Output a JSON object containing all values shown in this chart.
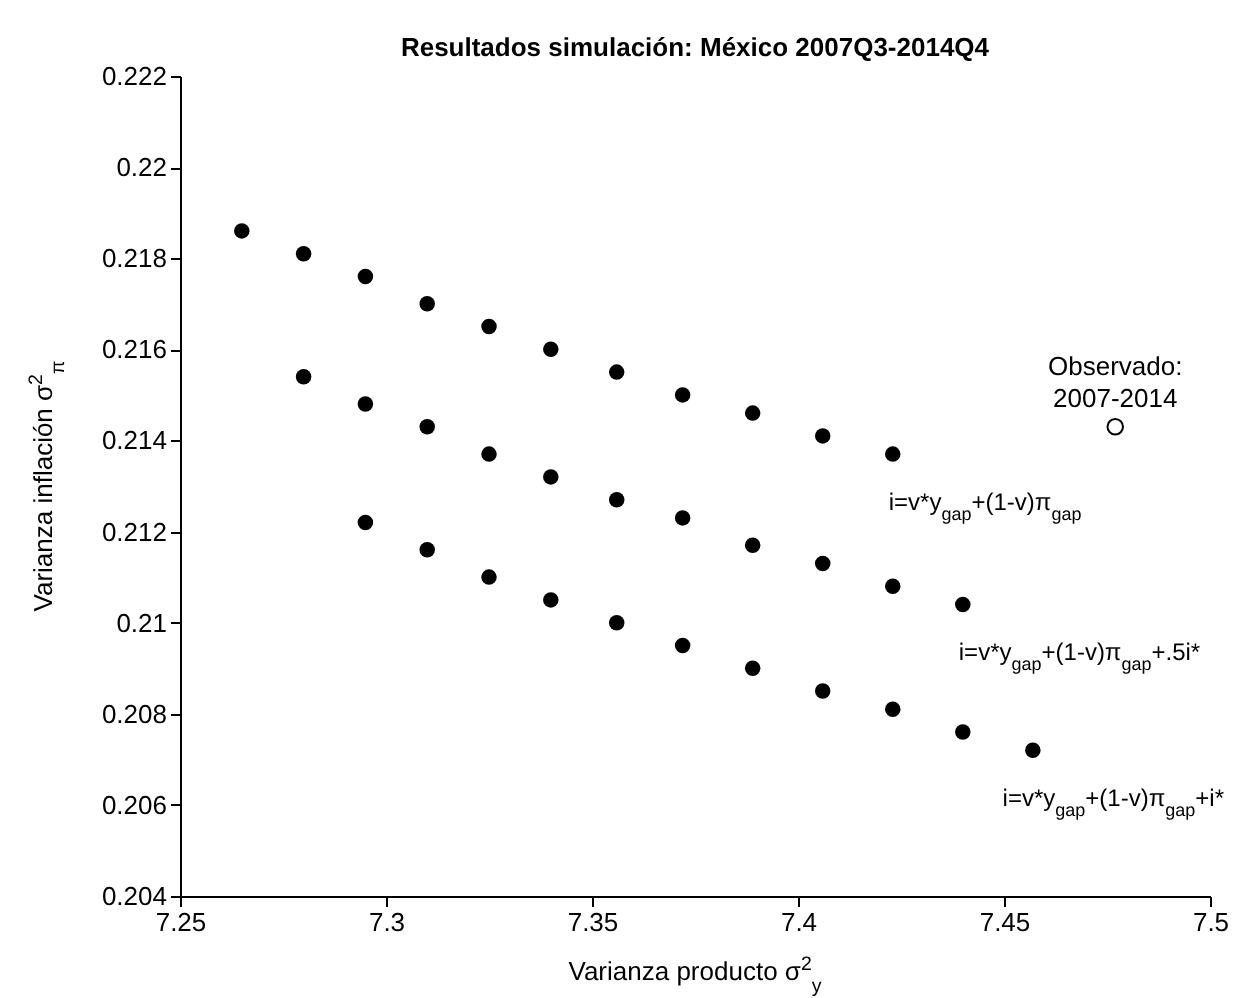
{
  "chart_data": {
    "type": "scatter",
    "title": "Resultados simulación: México 2007Q3-2014Q4",
    "xlabel": "Varianza producto σ$^{2}$$_{y}$",
    "ylabel": "Varianza inflación σ$^{2}$$_{π}$",
    "xlim": [
      7.25,
      7.5
    ],
    "xticks": [
      7.25,
      7.3,
      7.35,
      7.4,
      7.45,
      7.5
    ],
    "ylim": [
      0.204,
      0.222
    ],
    "yticks": [
      0.204,
      0.206,
      0.208,
      0.21,
      0.212,
      0.214,
      0.216,
      0.218,
      0.22,
      0.222
    ],
    "marker": "circle",
    "series": [
      {
        "name": "i=v*y$_{gap}$+(1-v)π$_{gap}$",
        "color": "#000000",
        "x": [
          7.265,
          7.28,
          7.295,
          7.31,
          7.325,
          7.34,
          7.356,
          7.372,
          7.389,
          7.406,
          7.423
        ],
        "values": [
          0.2186,
          0.2181,
          0.2176,
          0.217,
          0.2165,
          0.216,
          0.2155,
          0.215,
          0.2146,
          0.2141,
          0.2137
        ]
      },
      {
        "name": "i=v*y$_{gap}$+(1-v)π$_{gap}$+.5i*",
        "color": "#000000",
        "x": [
          7.28,
          7.295,
          7.31,
          7.325,
          7.34,
          7.356,
          7.372,
          7.389,
          7.406,
          7.423,
          7.44
        ],
        "values": [
          0.2154,
          0.2148,
          0.2143,
          0.2137,
          0.2132,
          0.2127,
          0.2123,
          0.2117,
          0.2113,
          0.2108,
          0.2104
        ]
      },
      {
        "name": "i=v*y$_{gap}$+(1-v)π$_{gap}$+i*",
        "color": "#000000",
        "x": [
          7.295,
          7.31,
          7.325,
          7.34,
          7.356,
          7.372,
          7.389,
          7.406,
          7.423,
          7.44,
          7.457
        ],
        "values": [
          0.2122,
          0.2116,
          0.211,
          0.2105,
          0.21,
          0.2095,
          0.209,
          0.2085,
          0.2081,
          0.2076,
          0.2072
        ]
      }
    ],
    "annotations": [
      {
        "text": "Observado:\n2007-2014",
        "x": 7.477,
        "y": 0.2143
      }
    ]
  }
}
